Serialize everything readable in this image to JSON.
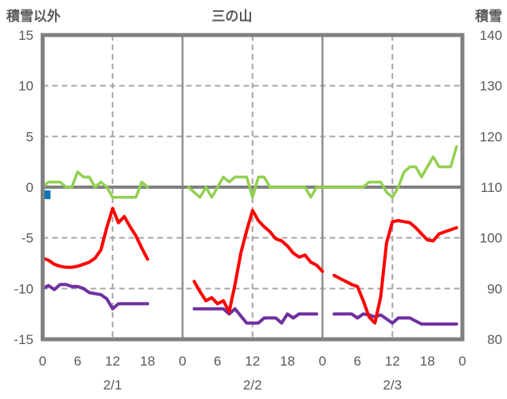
{
  "header": {
    "left_axis_title": "積雪以外",
    "chart_title": "三の山",
    "right_axis_title": "積雪"
  },
  "colors": {
    "text": "#595959",
    "frame": "#808080",
    "zero_line": "#808080",
    "dashed_grid": "#A6A6A6",
    "solid_grid": "#8F8F8F",
    "green_series": "#92D050",
    "red_series": "#FF0000",
    "purple_series": "#7030A0",
    "blue_marker": "#0F75BC",
    "background": "#FFFFFF"
  },
  "chart_data": {
    "type": "line",
    "title": "三の山",
    "legend": "none",
    "grid": "dashed horizontal at left-axis 10,5,-5,-10; dashed vertical at hours 12,36,60; solid vertical at day boundaries 24,48; solid zero line",
    "left_axis": {
      "label": "積雪以外",
      "min": -15,
      "max": 15,
      "tick_labels": [
        15,
        10,
        5,
        0,
        -5,
        -10,
        -15
      ],
      "grid_values": [
        10,
        5,
        -5,
        -10
      ],
      "zero_value": 0
    },
    "right_axis": {
      "label": "積雪",
      "min": 80,
      "max": 140,
      "tick_labels": [
        140,
        130,
        120,
        110,
        100,
        90,
        80
      ]
    },
    "x_axis": {
      "unit": "hour",
      "total_hours": 72,
      "hour_ticks": [
        {
          "h": 0,
          "label": "0"
        },
        {
          "h": 6,
          "label": "6"
        },
        {
          "h": 12,
          "label": "12"
        },
        {
          "h": 18,
          "label": "18"
        },
        {
          "h": 24,
          "label": "0"
        },
        {
          "h": 30,
          "label": "6"
        },
        {
          "h": 36,
          "label": "12"
        },
        {
          "h": 42,
          "label": "18"
        },
        {
          "h": 48,
          "label": "0"
        },
        {
          "h": 54,
          "label": "6"
        },
        {
          "h": 60,
          "label": "12"
        },
        {
          "h": 66,
          "label": "18"
        },
        {
          "h": 72,
          "label": "0"
        }
      ],
      "day_labels": [
        {
          "h": 12,
          "label": "2/1"
        },
        {
          "h": 36,
          "label": "2/2"
        },
        {
          "h": 60,
          "label": "2/3"
        }
      ],
      "dashed_gridline_hours": [
        12,
        36,
        60
      ],
      "solid_gridline_hours": [
        24,
        48
      ]
    },
    "series": [
      {
        "name": "snow-depth-green",
        "axis": "right",
        "color_key": "green_series",
        "width": 3.5,
        "segments": [
          {
            "start_hour": 0,
            "values": [
              110,
              111,
              111,
              111,
              110,
              110,
              113,
              112,
              112,
              110,
              111,
              110,
              108,
              108,
              108,
              108,
              108,
              111,
              110
            ]
          },
          {
            "start_hour": 25,
            "values": [
              110,
              109,
              108,
              110,
              108,
              110,
              112,
              111,
              112,
              112,
              112,
              108,
              112,
              112,
              110,
              110,
              110,
              110,
              110,
              110,
              110,
              108,
              110,
              110,
              110,
              110,
              110,
              110,
              110,
              110,
              110,
              111,
              111,
              111,
              109,
              108,
              110,
              113,
              114,
              114,
              112,
              114,
              116,
              114,
              114,
              114,
              118
            ]
          }
        ]
      },
      {
        "name": "temperature-purple",
        "axis": "left",
        "color_key": "purple_series",
        "width": 4,
        "segments": [
          {
            "start_hour": 0,
            "values": [
              -10.0,
              -9.7,
              -10.1,
              -9.6,
              -9.6,
              -9.8,
              -9.8,
              -10.0,
              -10.4,
              -10.5,
              -10.6,
              -11.0,
              -12.0,
              -11.5,
              -11.5,
              -11.5,
              -11.5,
              -11.5,
              -11.5
            ]
          },
          {
            "start_hour": 26,
            "values": [
              -12.0,
              -12.0,
              -12.0,
              -12.0,
              -12.0,
              -12.0,
              -12.5,
              -12.0,
              -12.7,
              -13.4,
              -13.4,
              -13.4,
              -12.9,
              -12.9,
              -12.9,
              -13.4,
              -12.5,
              -12.9,
              -12.5,
              -12.5,
              -12.5,
              -12.5
            ]
          },
          {
            "start_hour": 50,
            "values": [
              -12.5,
              -12.5,
              -12.5,
              -12.5,
              -12.9,
              -12.5,
              -12.6,
              -12.8,
              -12.6,
              -13.0,
              -13.4,
              -12.9,
              -12.9,
              -12.9,
              -13.2,
              -13.5,
              -13.5,
              -13.5,
              -13.5,
              -13.5,
              -13.5,
              -13.5
            ]
          }
        ]
      },
      {
        "name": "temperature-red",
        "axis": "left",
        "color_key": "red_series",
        "width": 4,
        "segments": [
          {
            "start_hour": 0,
            "values": [
              -7.0,
              -7.2,
              -7.6,
              -7.8,
              -7.9,
              -7.9,
              -7.8,
              -7.6,
              -7.4,
              -7.0,
              -6.2,
              -4.0,
              -2.1,
              -3.5,
              -2.9,
              -3.9,
              -4.8,
              -6.0,
              -7.1
            ]
          },
          {
            "start_hour": 26,
            "values": [
              -9.3,
              -10.3,
              -11.2,
              -10.9,
              -11.5,
              -11.2,
              -12.3,
              -9.6,
              -6.5,
              -4.3,
              -2.3,
              -3.3,
              -3.9,
              -4.4,
              -5.1,
              -5.3,
              -5.8,
              -6.5,
              -6.9,
              -6.7,
              -7.4,
              -7.7,
              -8.3
            ]
          },
          {
            "start_hour": 50,
            "values": [
              -8.7,
              -9.0,
              -9.3,
              -9.6,
              -9.8,
              -11.2,
              -12.8,
              -13.4,
              -10.8,
              -5.5,
              -3.4,
              -3.3,
              -3.4,
              -3.5,
              -4.0,
              -4.6,
              -5.2,
              -5.3,
              -4.6,
              -4.4,
              -4.2,
              -4.0
            ]
          }
        ]
      }
    ],
    "point_marker": {
      "name": "blue-square-marker",
      "axis": "right",
      "shape": "square",
      "hour": 0.6,
      "value": 108.5,
      "size": 11,
      "color_key": "blue_marker"
    }
  }
}
